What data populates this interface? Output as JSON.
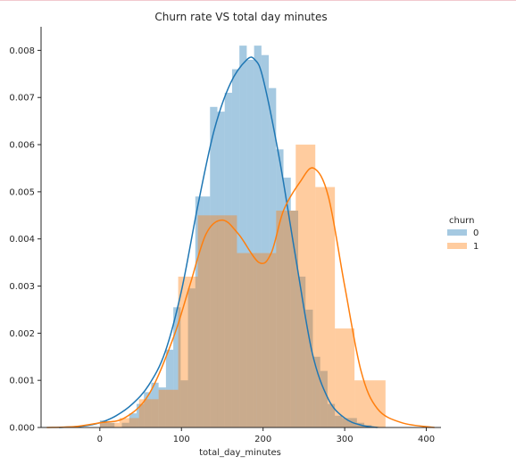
{
  "chart_data": {
    "type": "histogram",
    "title": "Churn rate VS total day minutes",
    "xlabel": "total_day_minutes",
    "ylabel": "",
    "xlim": [
      -72,
      418
    ],
    "ylim": [
      0,
      0.0085
    ],
    "x_ticks": [
      0,
      100,
      200,
      300,
      400
    ],
    "y_ticks": [
      0.0,
      0.001,
      0.002,
      0.003,
      0.004,
      0.005,
      0.006,
      0.007,
      0.008
    ],
    "y_tick_labels": [
      "0.000",
      "0.001",
      "0.002",
      "0.003",
      "0.004",
      "0.005",
      "0.006",
      "0.007",
      "0.008"
    ],
    "grid": false,
    "legend": {
      "title": "churn",
      "placement": "center-right"
    },
    "series": [
      {
        "name": "0",
        "color": "#1f77b4",
        "bin_edges": [
          0,
          9,
          18,
          27,
          36,
          45,
          54,
          63,
          72,
          81,
          90,
          99,
          108,
          117,
          126,
          135,
          144,
          153,
          162,
          171,
          180,
          189,
          198,
          207,
          216,
          225,
          234,
          243,
          252,
          261,
          270,
          279,
          288,
          297,
          306,
          315,
          324,
          333,
          342,
          351
        ],
        "densities": [
          0.00015,
          0.0001,
          0,
          0.0001,
          0.0003,
          0.0005,
          0.00075,
          0.00095,
          0.00085,
          0.00165,
          0.00255,
          0.001,
          0.00295,
          0.0049,
          0.0049,
          0.0068,
          0.0067,
          0.0071,
          0.0076,
          0.0081,
          0.0078,
          0.0081,
          0.0079,
          0.0072,
          0.0059,
          0.0053,
          0.0046,
          0.0032,
          0.0025,
          0.0015,
          0.0012,
          0.0005,
          0.00025,
          0.0002,
          0.0002,
          0.0001,
          5e-05,
          2e-05,
          1e-05
        ],
        "kde_x": [
          -50,
          -20,
          0,
          20,
          40,
          60,
          80,
          100,
          120,
          140,
          160,
          180,
          190,
          200,
          220,
          240,
          260,
          280,
          300,
          320,
          340
        ],
        "kde_y": [
          0,
          3e-05,
          0.0001,
          0.00025,
          0.0005,
          0.0009,
          0.0016,
          0.0029,
          0.0047,
          0.0063,
          0.0073,
          0.0078,
          0.0078,
          0.0074,
          0.0057,
          0.0036,
          0.0016,
          0.0006,
          0.0002,
          5e-05,
          0
        ]
      },
      {
        "name": "1",
        "color": "#ff7f0e",
        "bin_edges": [
          0,
          24,
          48,
          72,
          96,
          120,
          144,
          168,
          192,
          216,
          240,
          264,
          288,
          312,
          336,
          350
        ],
        "densities": [
          0.0001,
          0.0002,
          0.0006,
          0.0008,
          0.0032,
          0.0045,
          0.0045,
          0.0037,
          0.0037,
          0.0046,
          0.006,
          0.0051,
          0.0021,
          0.001,
          0.001
        ],
        "kde_x": [
          -65,
          -30,
          0,
          30,
          60,
          90,
          110,
          130,
          150,
          170,
          195,
          210,
          225,
          245,
          262,
          280,
          300,
          320,
          340,
          370,
          410
        ],
        "kde_y": [
          0,
          2e-05,
          0.0001,
          0.0002,
          0.0007,
          0.0019,
          0.003,
          0.0041,
          0.0044,
          0.0041,
          0.0035,
          0.0037,
          0.0046,
          0.0052,
          0.0055,
          0.0049,
          0.003,
          0.0012,
          0.0004,
          0.0001,
          0
        ]
      }
    ]
  }
}
